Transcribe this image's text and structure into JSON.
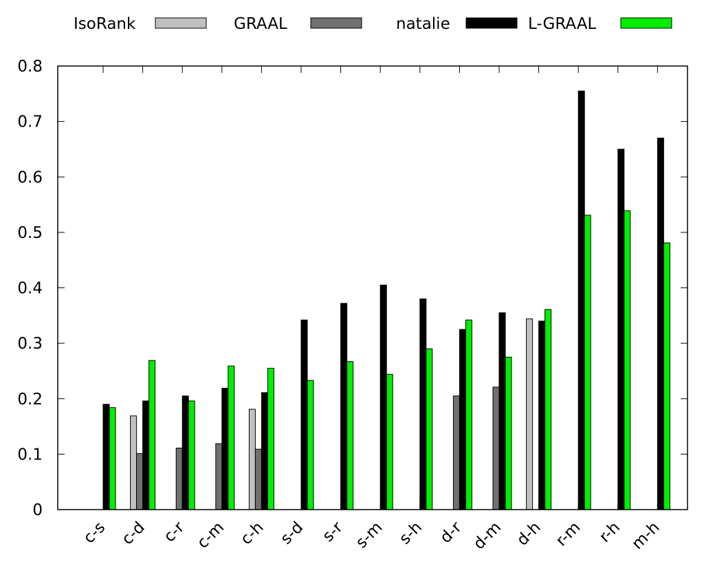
{
  "colors": {
    "IsoRank": "#c0c0c0",
    "GRAAL": "#707070",
    "natalie": "#000000",
    "L-GRAAL": "#00ee00"
  },
  "chart_data": {
    "type": "bar",
    "title": "",
    "xlabel": "",
    "ylabel": "",
    "ylim": [
      0,
      0.8
    ],
    "yticks": [
      "0",
      "0.1",
      "0.2",
      "0.3",
      "0.4",
      "0.5",
      "0.6",
      "0.7",
      "0.8"
    ],
    "legend_position": "top",
    "grid": false,
    "categories": [
      "c-s",
      "c-d",
      "c-r",
      "c-m",
      "c-h",
      "s-d",
      "s-r",
      "s-m",
      "s-h",
      "d-r",
      "d-m",
      "d-h",
      "r-m",
      "r-h",
      "m-h"
    ],
    "series": [
      {
        "name": "IsoRank",
        "values": [
          null,
          0.169,
          null,
          null,
          0.181,
          null,
          null,
          null,
          null,
          null,
          null,
          0.344,
          null,
          null,
          null
        ]
      },
      {
        "name": "GRAAL",
        "values": [
          null,
          0.101,
          0.111,
          0.119,
          0.109,
          null,
          null,
          null,
          null,
          0.205,
          0.221,
          null,
          null,
          null,
          null
        ]
      },
      {
        "name": "natalie",
        "values": [
          0.19,
          0.196,
          0.205,
          0.219,
          0.211,
          0.342,
          0.372,
          0.405,
          0.38,
          0.325,
          0.355,
          0.34,
          0.755,
          0.65,
          0.67
        ]
      },
      {
        "name": "L-GRAAL",
        "values": [
          0.184,
          0.269,
          0.196,
          0.259,
          0.255,
          0.233,
          0.267,
          0.244,
          0.29,
          0.342,
          0.275,
          0.361,
          0.531,
          0.539,
          0.481
        ]
      }
    ]
  }
}
